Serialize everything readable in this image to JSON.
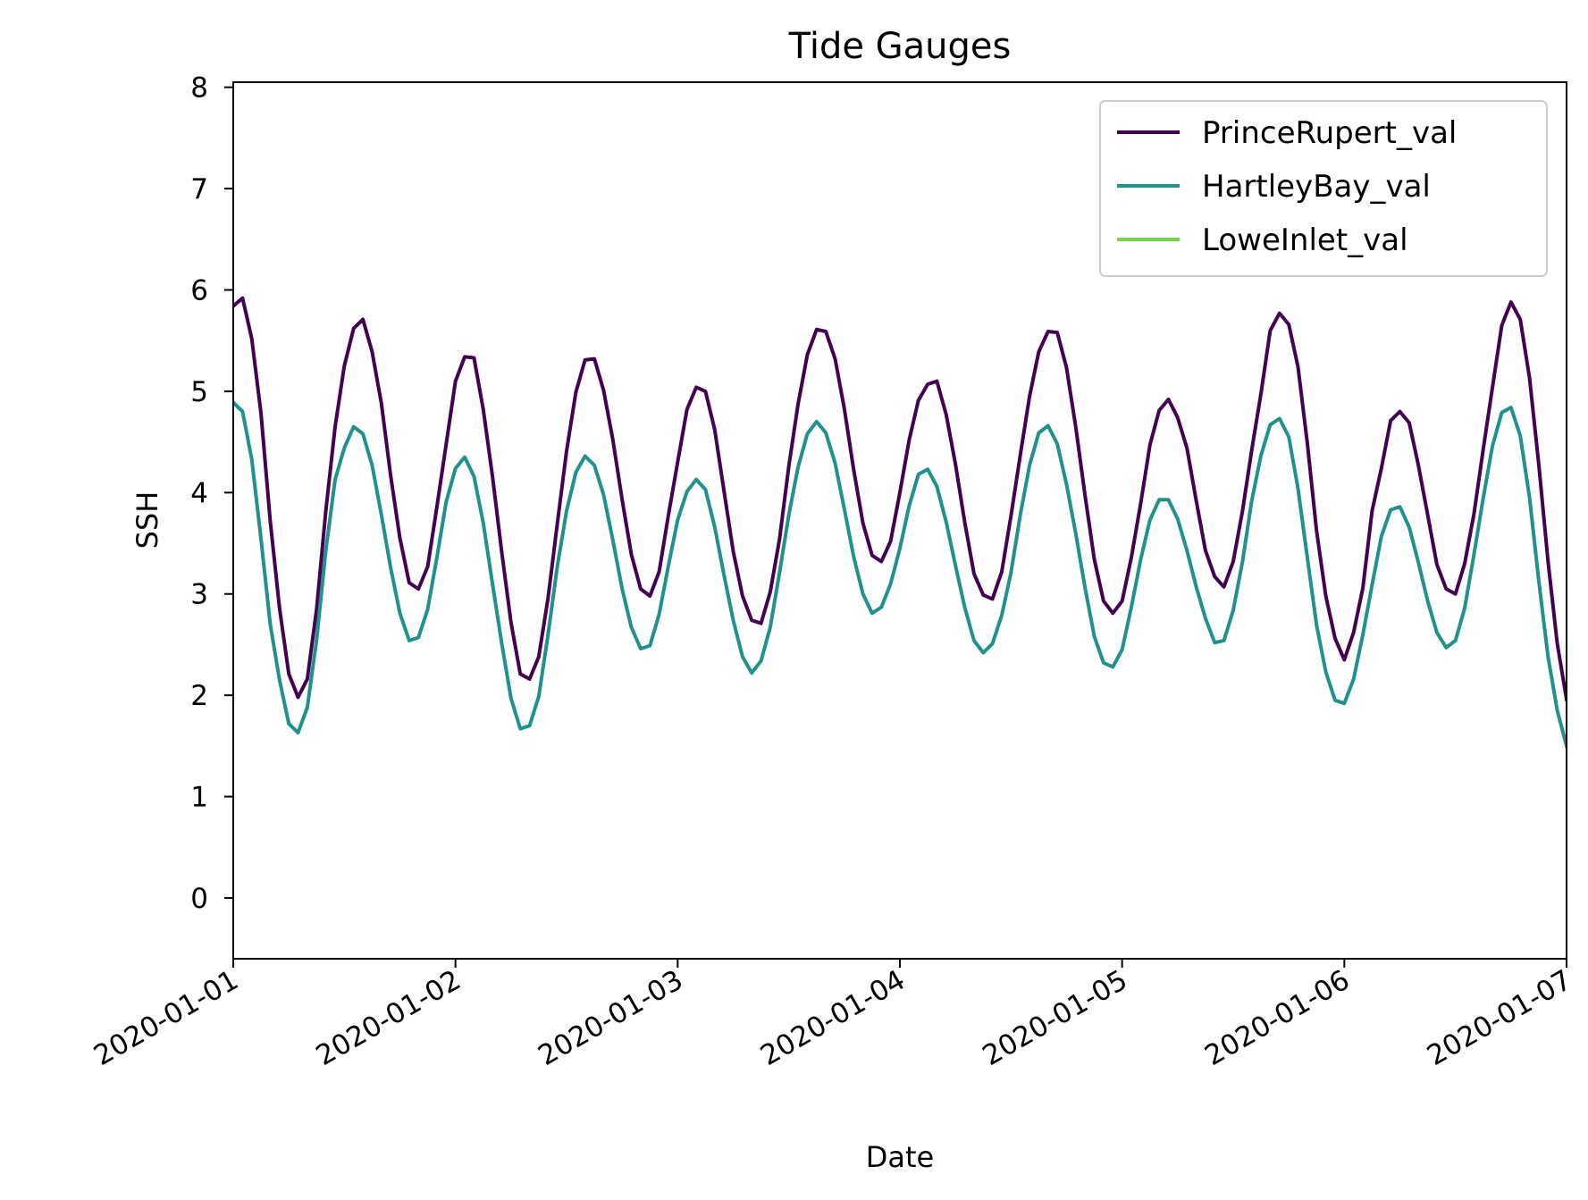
{
  "chart_data": {
    "type": "line",
    "title": "Tide Gauges",
    "xlabel": "Date",
    "ylabel": "SSH",
    "xlim": [
      "2020-01-01T00:00",
      "2020-01-07T00:00"
    ],
    "ylim": [
      -0.6,
      8.05
    ],
    "x_ticks": [
      "2020-01-01",
      "2020-01-02",
      "2020-01-03",
      "2020-01-04",
      "2020-01-05",
      "2020-01-06",
      "2020-01-07"
    ],
    "y_ticks": [
      0,
      1,
      2,
      3,
      4,
      5,
      6,
      7,
      8
    ],
    "grid": false,
    "legend_position": "top-right",
    "x_start": "2020-01-01T00:00",
    "x_step_hours": 1,
    "series": [
      {
        "name": "PrinceRupert_val",
        "color": "#440154",
        "values": [
          5.84,
          5.92,
          5.52,
          4.78,
          3.72,
          2.86,
          2.21,
          1.98,
          2.16,
          2.85,
          3.82,
          4.65,
          5.25,
          5.62,
          5.71,
          5.39,
          4.88,
          4.17,
          3.55,
          3.11,
          3.05,
          3.27,
          3.86,
          4.48,
          5.1,
          5.34,
          5.33,
          4.82,
          4.16,
          3.41,
          2.72,
          2.21,
          2.16,
          2.38,
          2.96,
          3.69,
          4.41,
          4.99,
          5.31,
          5.32,
          5.01,
          4.52,
          3.93,
          3.39,
          3.05,
          2.98,
          3.22,
          3.78,
          4.3,
          4.82,
          5.04,
          5.0,
          4.62,
          4.02,
          3.42,
          2.98,
          2.74,
          2.71,
          3.02,
          3.54,
          4.26,
          4.87,
          5.36,
          5.61,
          5.59,
          5.32,
          4.83,
          4.23,
          3.7,
          3.38,
          3.32,
          3.52,
          4.0,
          4.52,
          4.91,
          5.07,
          5.1,
          4.77,
          4.28,
          3.71,
          3.2,
          2.99,
          2.95,
          3.22,
          3.77,
          4.37,
          4.95,
          5.39,
          5.59,
          5.58,
          5.23,
          4.64,
          3.97,
          3.34,
          2.93,
          2.81,
          2.93,
          3.36,
          3.89,
          4.47,
          4.81,
          4.92,
          4.74,
          4.44,
          3.92,
          3.43,
          3.17,
          3.07,
          3.32,
          3.82,
          4.42,
          4.98,
          5.6,
          5.77,
          5.66,
          5.24,
          4.49,
          3.62,
          2.98,
          2.56,
          2.35,
          2.62,
          3.06,
          3.82,
          4.24,
          4.71,
          4.8,
          4.69,
          4.27,
          3.78,
          3.29,
          3.05,
          3.0,
          3.3,
          3.79,
          4.43,
          5.04,
          5.65,
          5.88,
          5.71,
          5.13,
          4.28,
          3.32,
          2.51,
          1.96
        ]
      },
      {
        "name": "HartleyBay_val",
        "color": "#21918c",
        "values": [
          4.89,
          4.8,
          4.33,
          3.54,
          2.7,
          2.15,
          1.72,
          1.63,
          1.88,
          2.55,
          3.43,
          4.13,
          4.44,
          4.65,
          4.58,
          4.27,
          3.78,
          3.26,
          2.81,
          2.54,
          2.57,
          2.85,
          3.36,
          3.91,
          4.24,
          4.35,
          4.16,
          3.7,
          3.1,
          2.51,
          1.97,
          1.67,
          1.7,
          1.99,
          2.6,
          3.27,
          3.82,
          4.2,
          4.36,
          4.27,
          3.98,
          3.53,
          3.05,
          2.67,
          2.46,
          2.49,
          2.8,
          3.28,
          3.73,
          4.01,
          4.13,
          4.03,
          3.66,
          3.19,
          2.74,
          2.38,
          2.22,
          2.34,
          2.67,
          3.21,
          3.78,
          4.25,
          4.58,
          4.7,
          4.59,
          4.29,
          3.84,
          3.37,
          3.0,
          2.81,
          2.87,
          3.1,
          3.45,
          3.87,
          4.18,
          4.23,
          4.06,
          3.71,
          3.28,
          2.87,
          2.54,
          2.42,
          2.51,
          2.79,
          3.21,
          3.78,
          4.27,
          4.59,
          4.66,
          4.48,
          4.08,
          3.59,
          3.06,
          2.58,
          2.32,
          2.28,
          2.45,
          2.87,
          3.34,
          3.73,
          3.93,
          3.93,
          3.74,
          3.43,
          3.07,
          2.76,
          2.52,
          2.54,
          2.84,
          3.32,
          3.92,
          4.37,
          4.67,
          4.73,
          4.55,
          4.04,
          3.36,
          2.69,
          2.23,
          1.95,
          1.92,
          2.16,
          2.6,
          3.09,
          3.57,
          3.83,
          3.86,
          3.66,
          3.31,
          2.93,
          2.62,
          2.47,
          2.54,
          2.86,
          3.39,
          3.95,
          4.46,
          4.79,
          4.84,
          4.56,
          3.95,
          3.13,
          2.38,
          1.85,
          1.5
        ]
      },
      {
        "name": "LoweInlet_val",
        "color": "#7ad151",
        "values": []
      }
    ]
  }
}
